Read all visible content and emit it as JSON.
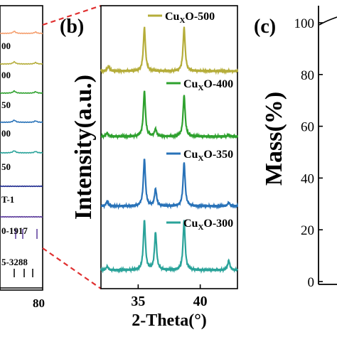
{
  "chart_data": [
    {
      "panel": "a",
      "type": "line",
      "partial": true,
      "x_tick_visible": "80",
      "labels": [
        "00",
        "00",
        "50",
        "00",
        "50",
        "T-1",
        "0-1917",
        "5-3288"
      ]
    },
    {
      "panel": "b",
      "type": "line",
      "title": "(b)",
      "xlabel": "2-Theta(°)",
      "ylabel": "Intensity(a.u.)",
      "xlim": [
        32,
        43
      ],
      "xticks": [
        "35",
        "40"
      ],
      "series": [
        {
          "name": "CuxO-500",
          "label_base": "Cu",
          "label_sub": "X",
          "label_rest": "O-500",
          "color": "#b5ad3a",
          "peaks": [
            [
              32.6,
              0.08
            ],
            [
              35.5,
              0.72
            ],
            [
              38.7,
              0.72
            ]
          ]
        },
        {
          "name": "CuxO-400",
          "label_base": "Cu",
          "label_sub": "X",
          "label_rest": "O-400",
          "color": "#2ea12e",
          "peaks": [
            [
              32.5,
              0.06
            ],
            [
              35.5,
              0.75
            ],
            [
              36.4,
              0.12
            ],
            [
              38.7,
              0.68
            ],
            [
              42.3,
              0.03
            ]
          ]
        },
        {
          "name": "CuxO-350",
          "label_base": "Cu",
          "label_sub": "X",
          "label_rest": "O-350",
          "color": "#2872b8",
          "peaks": [
            [
              32.5,
              0.08
            ],
            [
              35.5,
              0.78
            ],
            [
              36.4,
              0.28
            ],
            [
              38.7,
              0.72
            ],
            [
              42.3,
              0.06
            ]
          ]
        },
        {
          "name": "CuxO-300",
          "label_base": "Cu",
          "label_sub": "X",
          "label_rest": "O-300",
          "color": "#2aa39a",
          "peaks": [
            [
              32.5,
              0.06
            ],
            [
              35.5,
              0.82
            ],
            [
              36.4,
              0.62
            ],
            [
              38.7,
              0.82
            ],
            [
              42.3,
              0.16
            ]
          ]
        }
      ]
    },
    {
      "panel": "c",
      "type": "line",
      "partial": true,
      "title": "(c)",
      "ylabel": "Mass(%)",
      "ylim": [
        0,
        100
      ],
      "yticks": [
        "0",
        "20",
        "40",
        "60",
        "80",
        "100"
      ]
    }
  ],
  "colors": {
    "connector": "#e03030",
    "axis": "#000000",
    "panel_a_lines": [
      "#f5a070",
      "#b5ad3a",
      "#2ea12e",
      "#2872b8",
      "#2aa39a",
      "#1e2a8f",
      "#5b3a9b"
    ]
  }
}
